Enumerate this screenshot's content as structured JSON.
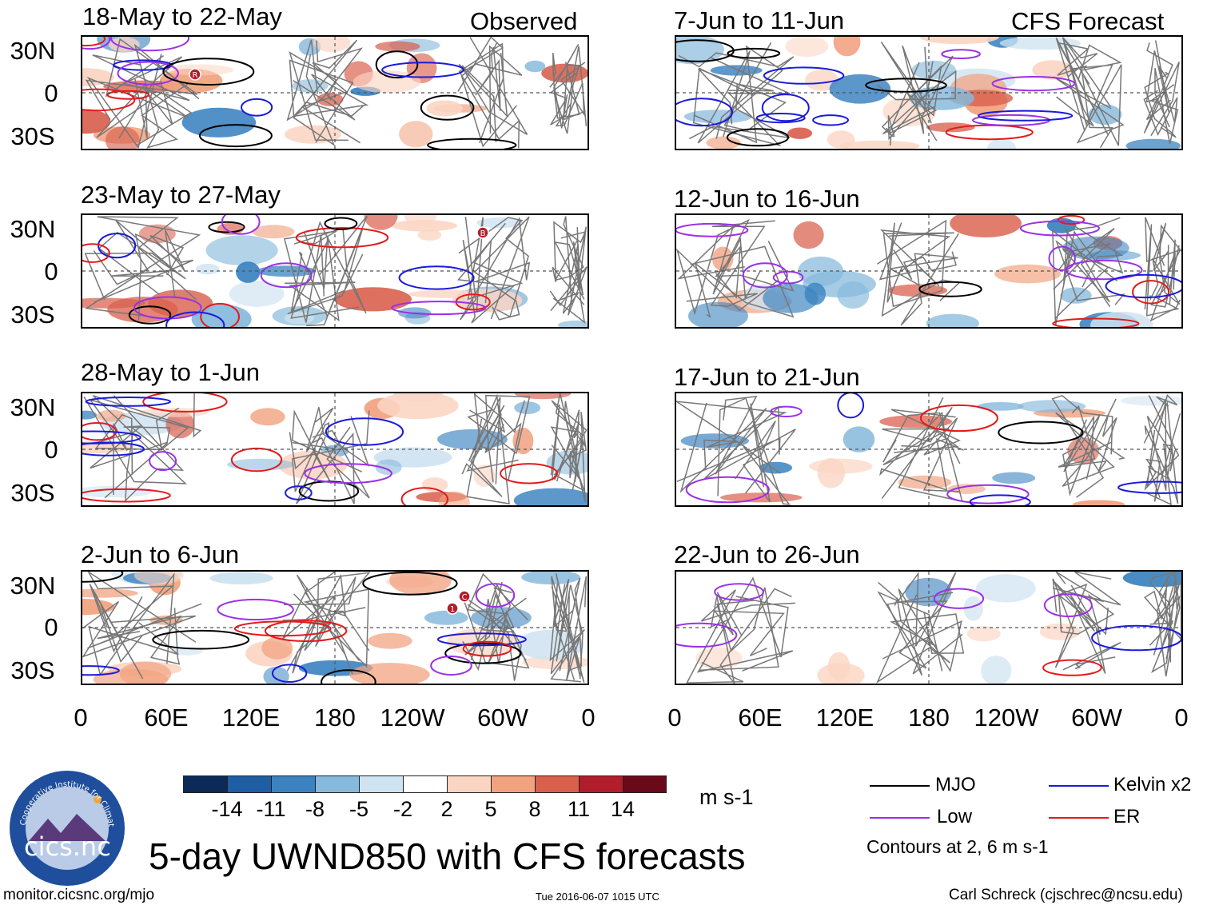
{
  "headers": {
    "observed": "Observed",
    "forecast": "CFS Forecast"
  },
  "panels": {
    "left": [
      {
        "title": "18-May to 22-May"
      },
      {
        "title": "23-May to 27-May"
      },
      {
        "title": "28-May to 1-Jun"
      },
      {
        "title": "2-Jun to 6-Jun"
      }
    ],
    "right": [
      {
        "title": "7-Jun to 11-Jun"
      },
      {
        "title": "12-Jun to 16-Jun"
      },
      {
        "title": "17-Jun to 21-Jun"
      },
      {
        "title": "22-Jun to 26-Jun"
      }
    ]
  },
  "axes": {
    "lat_labels": [
      "30N",
      "0",
      "30S"
    ],
    "lon_labels": [
      "0",
      "60E",
      "120E",
      "180",
      "120W",
      "60W",
      "0"
    ]
  },
  "storm_markers": {
    "p1": [
      "R"
    ],
    "p2": [
      "B"
    ],
    "p4": [
      "C",
      "1"
    ]
  },
  "colorbar": {
    "ticks": [
      "-14",
      "-11",
      "-8",
      "-5",
      "-2",
      "2",
      "5",
      "8",
      "11",
      "14"
    ],
    "colors": [
      "#0b2a58",
      "#1f5ea3",
      "#3b83c0",
      "#86b9dc",
      "#cfe3f1",
      "#ffffff",
      "#fbd5c3",
      "#f1a27f",
      "#d9604d",
      "#b21d2b",
      "#6a0919"
    ],
    "units": "m s-1"
  },
  "legend": {
    "mjo": {
      "label": "MJO",
      "color": "#000000"
    },
    "kelvin": {
      "label": "Kelvin x2",
      "color": "#1a1adc"
    },
    "low": {
      "label": "Low",
      "color": "#9b30e6"
    },
    "er": {
      "label": "ER",
      "color": "#e31a1c"
    },
    "note": "Contours at 2, 6 m s-1"
  },
  "title": "5-day UWND850 with CFS forecasts",
  "logo_text": "cics.nc",
  "logo_ring_text": "Cooperative Institute for Climate and Satellites",
  "footer": {
    "left": "monitor.cicsnc.org/mjo",
    "center": "Tue 2016-06-07 1015 UTC",
    "right": "Carl Schreck (cjschrec@ncsu.edu)"
  }
}
